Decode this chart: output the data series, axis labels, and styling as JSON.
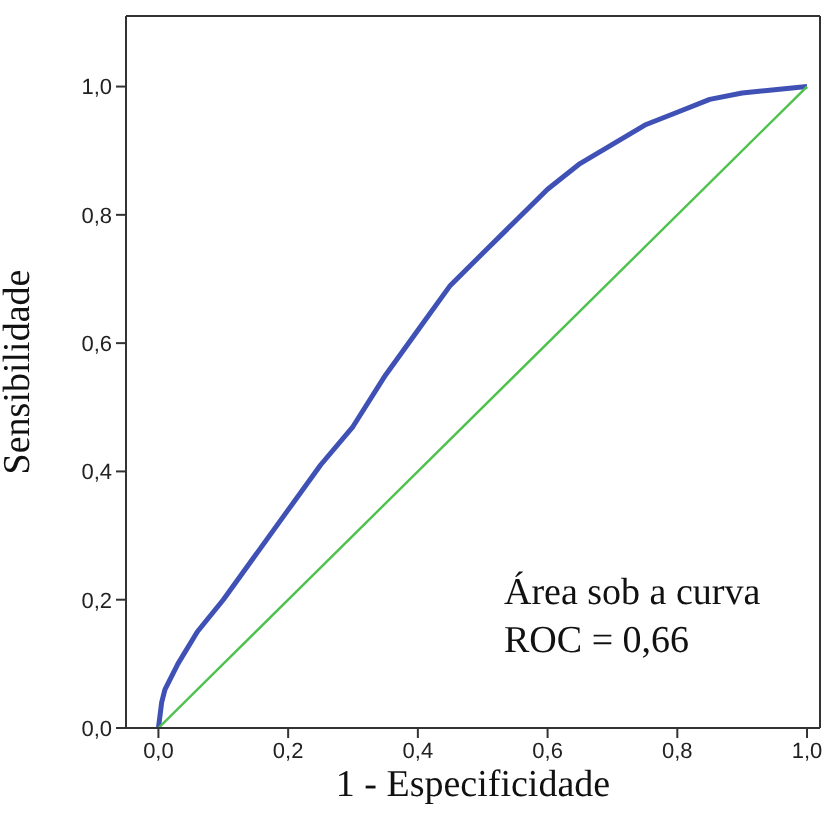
{
  "chart_data": {
    "type": "line",
    "xlabel": "1 - Especificidade",
    "ylabel": "Sensibilidade",
    "xlim": [
      -0.05,
      1.02
    ],
    "ylim": [
      0,
      1.11
    ],
    "xticks": [
      {
        "value": 0,
        "label": "0,0"
      },
      {
        "value": 0.2,
        "label": "0,2"
      },
      {
        "value": 0.4,
        "label": "0,4"
      },
      {
        "value": 0.6,
        "label": "0,6"
      },
      {
        "value": 0.8,
        "label": "0,8"
      },
      {
        "value": 1,
        "label": "1,0"
      }
    ],
    "yticks": [
      {
        "value": 0,
        "label": "0,0"
      },
      {
        "value": 0.2,
        "label": "0,2"
      },
      {
        "value": 0.4,
        "label": "0,4"
      },
      {
        "value": 0.6,
        "label": "0,6"
      },
      {
        "value": 0.8,
        "label": "0,8"
      },
      {
        "value": 1,
        "label": "1,0"
      }
    ],
    "series": [
      {
        "color": "#3f51b5",
        "x": [
          0,
          0.005,
          0.01,
          0.03,
          0.06,
          0.1,
          0.15,
          0.2,
          0.25,
          0.3,
          0.35,
          0.4,
          0.45,
          0.5,
          0.55,
          0.6,
          0.65,
          0.7,
          0.75,
          0.8,
          0.85,
          0.9,
          0.95,
          1
        ],
        "values": [
          0,
          0.04,
          0.06,
          0.1,
          0.15,
          0.2,
          0.27,
          0.34,
          0.41,
          0.47,
          0.55,
          0.62,
          0.69,
          0.74,
          0.79,
          0.84,
          0.88,
          0.91,
          0.94,
          0.96,
          0.98,
          0.99,
          0.995,
          1
        ]
      },
      {
        "color": "#4cc24c",
        "x": [
          0,
          1
        ],
        "values": [
          0,
          1
        ]
      }
    ],
    "marker": "none",
    "line_style": "solid",
    "annotations": [
      "Área sob a curva\nROC = 0,66"
    ]
  }
}
